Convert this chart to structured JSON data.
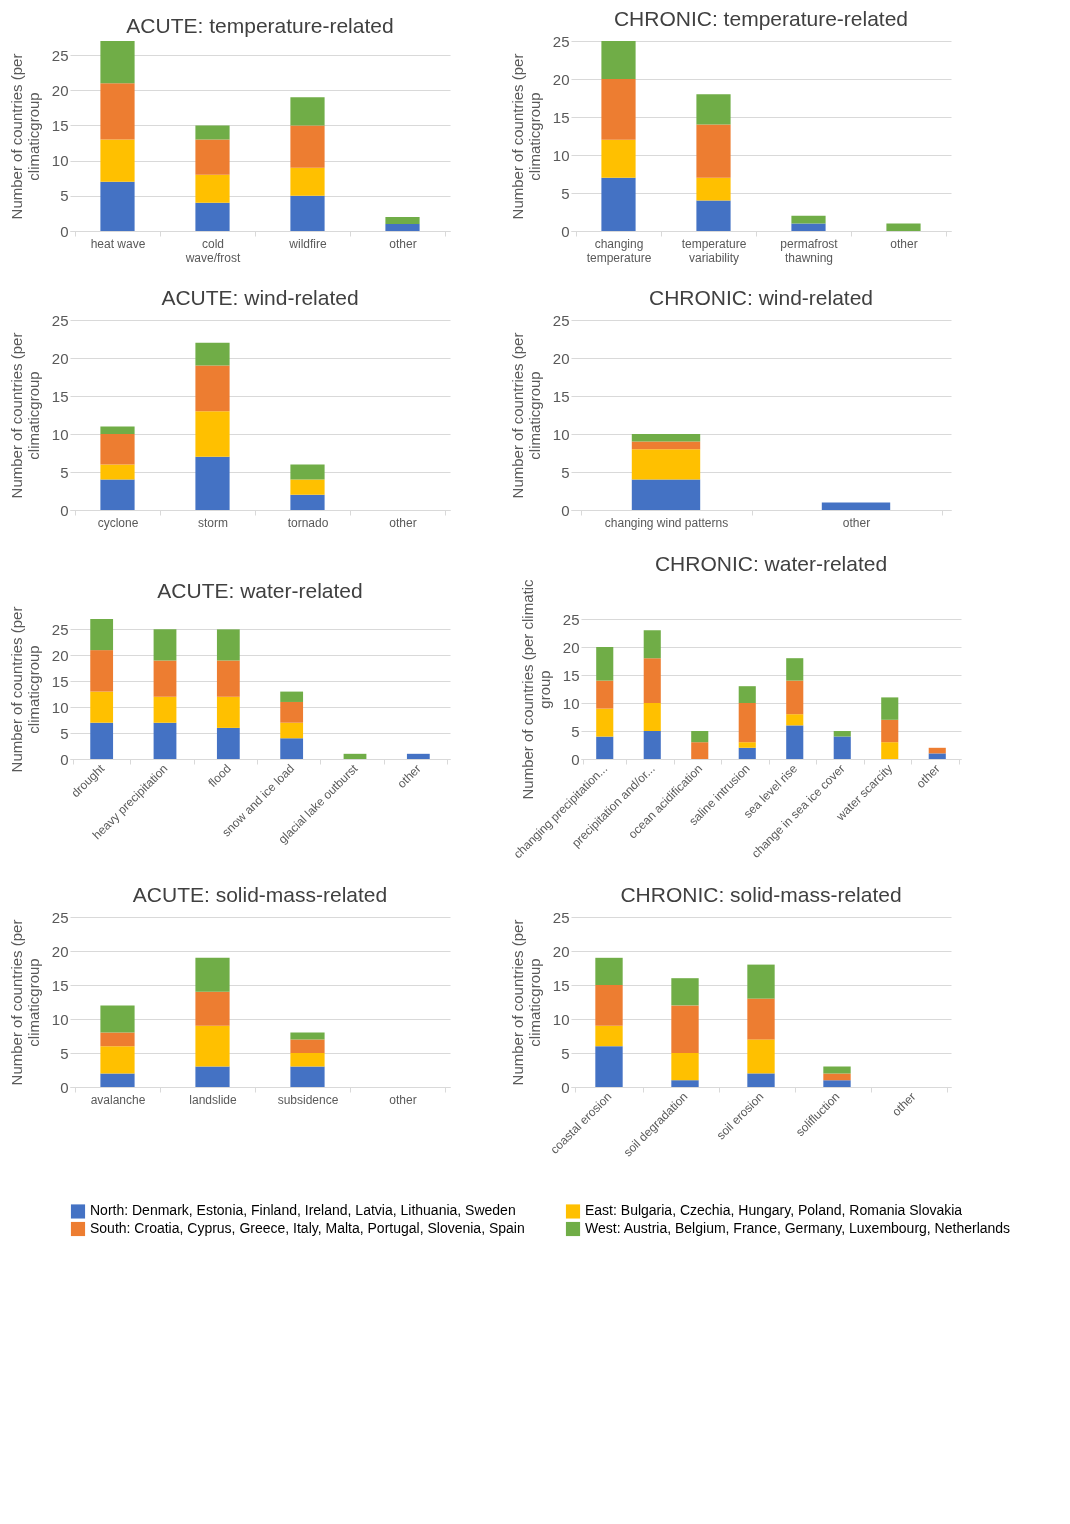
{
  "chart_data": [
    {
      "type": "bar",
      "stacked": true,
      "title": "ACUTE: temperature-related",
      "ylabel": "Number of countries (per\nclimaticgroup",
      "categories": [
        "heat wave",
        "cold wave/frost",
        "wildfire",
        "other"
      ],
      "ylim": [
        0,
        27
      ],
      "yticks": [
        0,
        5,
        10,
        15,
        20,
        25
      ],
      "grid": "y",
      "legend": "bottom",
      "series": [
        {
          "name": "North: Denmark, Estonia, Finland, Ireland, Latvia, Lithuania, Sweden",
          "color": "#4472c4",
          "values": [
            7,
            4,
            5,
            1
          ]
        },
        {
          "name": "East: Bulgaria, Czechia, Hungary, Poland, Romania Slovakia",
          "color": "#ffc000",
          "values": [
            6,
            4,
            4,
            0
          ]
        },
        {
          "name": "South: Croatia, Cyprus, Greece, Italy, Malta, Portugal, Slovenia, Spain",
          "color": "#ed7d31",
          "values": [
            8,
            5,
            6,
            0
          ]
        },
        {
          "name": "West: Austria, Belgium, France, Germany, Luxembourg, Netherlands",
          "color": "#70ad47",
          "values": [
            6,
            2,
            4,
            1
          ]
        }
      ]
    },
    {
      "type": "bar",
      "stacked": true,
      "title": "CHRONIC: temperature-related",
      "ylabel": "Number of countries (per\nclimaticgroup",
      "categories": [
        "changing temperature",
        "temperature variability",
        "permafrost thawning",
        "other"
      ],
      "ylim": [
        0,
        25
      ],
      "yticks": [
        0,
        5,
        10,
        15,
        20,
        25
      ],
      "grid": "y",
      "series": [
        {
          "name": "North: Denmark, Estonia, Finland, Ireland, Latvia, Lithuania, Sweden",
          "color": "#4472c4",
          "values": [
            7,
            4,
            1,
            0
          ]
        },
        {
          "name": "East: Bulgaria, Czechia, Hungary, Poland, Romania Slovakia",
          "color": "#ffc000",
          "values": [
            5,
            3,
            0,
            0
          ]
        },
        {
          "name": "South: Croatia, Cyprus, Greece, Italy, Malta, Portugal, Slovenia, Spain",
          "color": "#ed7d31",
          "values": [
            8,
            7,
            0,
            0
          ]
        },
        {
          "name": "West: Austria, Belgium, France, Germany, Luxembourg, Netherlands",
          "color": "#70ad47",
          "values": [
            5,
            4,
            1,
            1
          ]
        }
      ]
    },
    {
      "type": "bar",
      "stacked": true,
      "title": "ACUTE: wind-related",
      "ylabel": "Number of countries (per\nclimaticgroup",
      "categories": [
        "cyclone",
        "storm",
        "tornado",
        "other"
      ],
      "ylim": [
        0,
        25
      ],
      "yticks": [
        0,
        5,
        10,
        15,
        20,
        25
      ],
      "grid": "y",
      "series": [
        {
          "name": "North: Denmark, Estonia, Finland, Ireland, Latvia, Lithuania, Sweden",
          "color": "#4472c4",
          "values": [
            4,
            7,
            2,
            0
          ]
        },
        {
          "name": "East: Bulgaria, Czechia, Hungary, Poland, Romania Slovakia",
          "color": "#ffc000",
          "values": [
            2,
            6,
            2,
            0
          ]
        },
        {
          "name": "South: Croatia, Cyprus, Greece, Italy, Malta, Portugal, Slovenia, Spain",
          "color": "#ed7d31",
          "values": [
            4,
            6,
            0,
            0
          ]
        },
        {
          "name": "West: Austria, Belgium, France, Germany, Luxembourg, Netherlands",
          "color": "#70ad47",
          "values": [
            1,
            3,
            2,
            0
          ]
        }
      ]
    },
    {
      "type": "bar",
      "stacked": true,
      "title": "CHRONIC: wind-related",
      "ylabel": "Number of countries (per\nclimaticgroup",
      "categories": [
        "changing wind patterns",
        "other"
      ],
      "ylim": [
        0,
        25
      ],
      "yticks": [
        0,
        5,
        10,
        15,
        20,
        25
      ],
      "grid": "y",
      "series": [
        {
          "name": "North: Denmark, Estonia, Finland, Ireland, Latvia, Lithuania, Sweden",
          "color": "#4472c4",
          "values": [
            4,
            1
          ]
        },
        {
          "name": "East: Bulgaria, Czechia, Hungary, Poland, Romania Slovakia",
          "color": "#ffc000",
          "values": [
            4,
            0
          ]
        },
        {
          "name": "South: Croatia, Cyprus, Greece, Italy, Malta, Portugal, Slovenia, Spain",
          "color": "#ed7d31",
          "values": [
            1,
            0
          ]
        },
        {
          "name": "West: Austria, Belgium, France, Germany, Luxembourg, Netherlands",
          "color": "#70ad47",
          "values": [
            1,
            0
          ]
        }
      ]
    },
    {
      "type": "bar",
      "stacked": true,
      "title": "ACUTE: water-related",
      "ylabel": "Number of countries (per\nclimaticgroup",
      "categories": [
        "drought",
        "heavy precipitation",
        "flood",
        "snow and ice load",
        "glacial lake outburst",
        "other"
      ],
      "ylim": [
        0,
        27
      ],
      "yticks": [
        0,
        5,
        10,
        15,
        20,
        25
      ],
      "grid": "y",
      "series": [
        {
          "name": "North: Denmark, Estonia, Finland, Ireland, Latvia, Lithuania, Sweden",
          "color": "#4472c4",
          "values": [
            7,
            7,
            6,
            4,
            0,
            1
          ]
        },
        {
          "name": "East: Bulgaria, Czechia, Hungary, Poland, Romania Slovakia",
          "color": "#ffc000",
          "values": [
            6,
            5,
            6,
            3,
            0,
            0
          ]
        },
        {
          "name": "South: Croatia, Cyprus, Greece, Italy, Malta, Portugal, Slovenia, Spain",
          "color": "#ed7d31",
          "values": [
            8,
            7,
            7,
            4,
            0,
            0
          ]
        },
        {
          "name": "West: Austria, Belgium, France, Germany, Luxembourg, Netherlands",
          "color": "#70ad47",
          "values": [
            6,
            6,
            6,
            2,
            1,
            0
          ]
        }
      ]
    },
    {
      "type": "bar",
      "stacked": true,
      "title": "CHRONIC: water-related",
      "ylabel": "Number of countries (per climatic\ngroup",
      "categories": [
        "changing precipitation...",
        "precipitation and/or...",
        "ocean acidification",
        "saline intrusion",
        "sea level rise",
        "change in sea ice cover",
        "water scarcity",
        "other"
      ],
      "ylim": [
        0,
        25
      ],
      "yticks": [
        0,
        5,
        10,
        15,
        20,
        25
      ],
      "grid": "y",
      "series": [
        {
          "name": "North: Denmark, Estonia, Finland, Ireland, Latvia, Lithuania, Sweden",
          "color": "#4472c4",
          "values": [
            4,
            5,
            0,
            2,
            6,
            4,
            0,
            1
          ]
        },
        {
          "name": "East: Bulgaria, Czechia, Hungary, Poland, Romania Slovakia",
          "color": "#ffc000",
          "values": [
            5,
            5,
            0,
            1,
            2,
            0,
            3,
            0
          ]
        },
        {
          "name": "South: Croatia, Cyprus, Greece, Italy, Malta, Portugal, Slovenia, Spain",
          "color": "#ed7d31",
          "values": [
            5,
            8,
            3,
            7,
            6,
            0,
            4,
            1
          ]
        },
        {
          "name": "West: Austria, Belgium, France, Germany, Luxembourg, Netherlands",
          "color": "#70ad47",
          "values": [
            6,
            5,
            2,
            3,
            4,
            1,
            4,
            0
          ]
        }
      ]
    },
    {
      "type": "bar",
      "stacked": true,
      "title": "ACUTE: solid-mass-related",
      "ylabel": "Number of countries (per\nclimaticgroup",
      "categories": [
        "avalanche",
        "landslide",
        "subsidence",
        "other"
      ],
      "ylim": [
        0,
        25
      ],
      "yticks": [
        0,
        5,
        10,
        15,
        20,
        25
      ],
      "grid": "y",
      "series": [
        {
          "name": "North: Denmark, Estonia, Finland, Ireland, Latvia, Lithuania, Sweden",
          "color": "#4472c4",
          "values": [
            2,
            3,
            3,
            0
          ]
        },
        {
          "name": "East: Bulgaria, Czechia, Hungary, Poland, Romania Slovakia",
          "color": "#ffc000",
          "values": [
            4,
            6,
            2,
            0
          ]
        },
        {
          "name": "South: Croatia, Cyprus, Greece, Italy, Malta, Portugal, Slovenia, Spain",
          "color": "#ed7d31",
          "values": [
            2,
            5,
            2,
            0
          ]
        },
        {
          "name": "West: Austria, Belgium, France, Germany, Luxembourg, Netherlands",
          "color": "#70ad47",
          "values": [
            4,
            5,
            1,
            0
          ]
        }
      ]
    },
    {
      "type": "bar",
      "stacked": true,
      "title": "CHRONIC: solid-mass-related",
      "ylabel": "Number of countries (per\nclimaticgroup",
      "categories": [
        "coastal erosion",
        "soil degradation",
        "soil erosion",
        "solifluction",
        "other"
      ],
      "ylim": [
        0,
        25
      ],
      "yticks": [
        0,
        5,
        10,
        15,
        20,
        25
      ],
      "grid": "y",
      "series": [
        {
          "name": "North: Denmark, Estonia, Finland, Ireland, Latvia, Lithuania, Sweden",
          "color": "#4472c4",
          "values": [
            6,
            1,
            2,
            1,
            0
          ]
        },
        {
          "name": "East: Bulgaria, Czechia, Hungary, Poland, Romania Slovakia",
          "color": "#ffc000",
          "values": [
            3,
            4,
            5,
            0,
            0
          ]
        },
        {
          "name": "South: Croatia, Cyprus, Greece, Italy, Malta, Portugal, Slovenia, Spain",
          "color": "#ed7d31",
          "values": [
            6,
            7,
            6,
            1,
            0
          ]
        },
        {
          "name": "West: Austria, Belgium, France, Germany, Luxembourg, Netherlands",
          "color": "#70ad47",
          "values": [
            4,
            4,
            5,
            1,
            0
          ]
        }
      ]
    }
  ]
}
